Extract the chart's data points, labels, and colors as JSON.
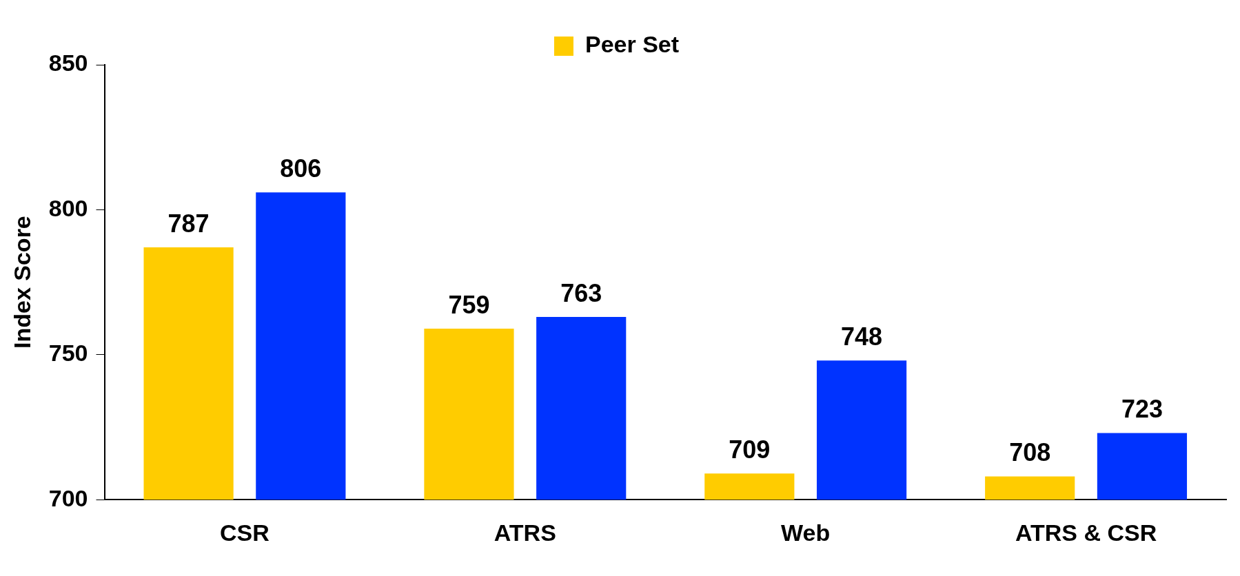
{
  "chart_data": {
    "type": "bar",
    "ylabel": "Index Score",
    "categories": [
      "CSR",
      "ATRS",
      "Web",
      "ATRS & CSR"
    ],
    "series": [
      {
        "name": "Peer Set",
        "color": "#ffcc00",
        "values": [
          787,
          759,
          709,
          708
        ]
      },
      {
        "color": "#0033ff",
        "values": [
          806,
          763,
          748,
          723
        ]
      }
    ],
    "ylim": [
      700,
      850
    ],
    "yticks": [
      700,
      750,
      800,
      850
    ],
    "grid": false,
    "legend": "top",
    "data_labels": true
  }
}
